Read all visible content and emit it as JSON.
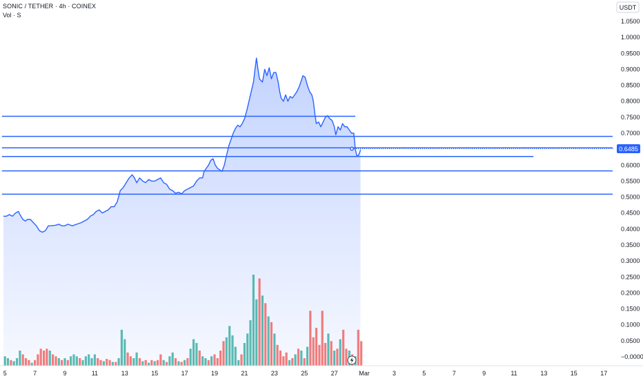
{
  "header": {
    "title": "SONIC / TETHER · 4h · COINEX",
    "volume_label": "Vol · S"
  },
  "price_axis": {
    "unit": "USDT",
    "last_price_label": "0.6485"
  },
  "colors": {
    "line": "#2962ff",
    "area_top": "#2962ff",
    "volume_up": "#26a69a",
    "volume_down": "#ef5350",
    "last_price": "#2962ff"
  },
  "chart_data": {
    "type": "area",
    "title": "SONIC / TETHER · 4h · COINEX",
    "ylabel": "USDT",
    "ylim": [
      -0.02,
      1.08
    ],
    "grid": false,
    "y_ticks": [
      {
        "value": 1.05,
        "label": "1.0500"
      },
      {
        "value": 1.0,
        "label": "1.0000"
      },
      {
        "value": 0.95,
        "label": "0.9500"
      },
      {
        "value": 0.9,
        "label": "0.9000"
      },
      {
        "value": 0.85,
        "label": "0.8500"
      },
      {
        "value": 0.8,
        "label": "0.8000"
      },
      {
        "value": 0.75,
        "label": "0.7500"
      },
      {
        "value": 0.7,
        "label": "0.7000"
      },
      {
        "value": 0.6,
        "label": "0.6000"
      },
      {
        "value": 0.55,
        "label": "0.5500"
      },
      {
        "value": 0.5,
        "label": "0.5000"
      },
      {
        "value": 0.45,
        "label": "0.4500"
      },
      {
        "value": 0.4,
        "label": "0.4000"
      },
      {
        "value": 0.35,
        "label": "0.3500"
      },
      {
        "value": 0.3,
        "label": "0.3000"
      },
      {
        "value": 0.25,
        "label": "0.2500"
      },
      {
        "value": 0.2,
        "label": "0.2000"
      },
      {
        "value": 0.15,
        "label": "0.1500"
      },
      {
        "value": 0.1,
        "label": "0.1000"
      },
      {
        "value": 0.05,
        "label": "0.0500"
      },
      {
        "value": 0.0,
        "label": "−0.0000"
      }
    ],
    "x_ticks": [
      {
        "day": 5,
        "label": "5"
      },
      {
        "day": 7,
        "label": "7"
      },
      {
        "day": 9,
        "label": "9"
      },
      {
        "day": 11,
        "label": "11"
      },
      {
        "day": 13,
        "label": "13"
      },
      {
        "day": 15,
        "label": "15"
      },
      {
        "day": 17,
        "label": "17"
      },
      {
        "day": 19,
        "label": "19"
      },
      {
        "day": 21,
        "label": "21"
      },
      {
        "day": 23,
        "label": "23"
      },
      {
        "day": 25,
        "label": "25"
      },
      {
        "day": 27,
        "label": "27"
      },
      {
        "day": 29,
        "label": "Mar"
      },
      {
        "day": 31,
        "label": "3"
      },
      {
        "day": 33,
        "label": "5"
      },
      {
        "day": 35,
        "label": "7"
      },
      {
        "day": 37,
        "label": "9"
      },
      {
        "day": 39,
        "label": "11"
      },
      {
        "day": 41,
        "label": "13"
      },
      {
        "day": 43,
        "label": "15"
      },
      {
        "day": 45,
        "label": "17"
      }
    ],
    "price_series": {
      "name": "SONIC / TETHER",
      "points": [
        [
          4.9,
          0.44
        ],
        [
          5.1,
          0.44
        ],
        [
          5.3,
          0.445
        ],
        [
          5.5,
          0.44
        ],
        [
          5.7,
          0.45
        ],
        [
          5.9,
          0.455
        ],
        [
          6.0,
          0.445
        ],
        [
          6.2,
          0.43
        ],
        [
          6.35,
          0.425
        ],
        [
          6.5,
          0.43
        ],
        [
          6.7,
          0.43
        ],
        [
          6.9,
          0.42
        ],
        [
          7.1,
          0.41
        ],
        [
          7.3,
          0.395
        ],
        [
          7.5,
          0.39
        ],
        [
          7.7,
          0.395
        ],
        [
          7.9,
          0.41
        ],
        [
          8.1,
          0.41
        ],
        [
          8.4,
          0.412
        ],
        [
          8.6,
          0.415
        ],
        [
          8.8,
          0.41
        ],
        [
          9.0,
          0.41
        ],
        [
          9.2,
          0.415
        ],
        [
          9.5,
          0.41
        ],
        [
          9.8,
          0.415
        ],
        [
          10.1,
          0.42
        ],
        [
          10.3,
          0.425
        ],
        [
          10.5,
          0.43
        ],
        [
          10.7,
          0.44
        ],
        [
          10.9,
          0.445
        ],
        [
          11.1,
          0.455
        ],
        [
          11.3,
          0.46
        ],
        [
          11.5,
          0.45
        ],
        [
          11.7,
          0.455
        ],
        [
          11.9,
          0.46
        ],
        [
          12.1,
          0.47
        ],
        [
          12.3,
          0.47
        ],
        [
          12.5,
          0.485
        ],
        [
          12.7,
          0.52
        ],
        [
          12.9,
          0.53
        ],
        [
          13.1,
          0.545
        ],
        [
          13.3,
          0.56
        ],
        [
          13.5,
          0.57
        ],
        [
          13.65,
          0.56
        ],
        [
          13.8,
          0.545
        ],
        [
          14.0,
          0.56
        ],
        [
          14.2,
          0.55
        ],
        [
          14.4,
          0.545
        ],
        [
          14.6,
          0.555
        ],
        [
          14.8,
          0.55
        ],
        [
          15.0,
          0.55
        ],
        [
          15.2,
          0.555
        ],
        [
          15.4,
          0.56
        ],
        [
          15.6,
          0.545
        ],
        [
          15.8,
          0.54
        ],
        [
          16.0,
          0.525
        ],
        [
          16.2,
          0.52
        ],
        [
          16.4,
          0.512
        ],
        [
          16.6,
          0.515
        ],
        [
          16.8,
          0.51
        ],
        [
          17.0,
          0.52
        ],
        [
          17.2,
          0.525
        ],
        [
          17.4,
          0.53
        ],
        [
          17.6,
          0.535
        ],
        [
          17.8,
          0.55
        ],
        [
          18.0,
          0.56
        ],
        [
          18.2,
          0.56
        ],
        [
          18.3,
          0.58
        ],
        [
          18.45,
          0.59
        ],
        [
          18.6,
          0.6
        ],
        [
          18.75,
          0.615
        ],
        [
          18.9,
          0.62
        ],
        [
          19.05,
          0.6
        ],
        [
          19.2,
          0.59
        ],
        [
          19.35,
          0.585
        ],
        [
          19.5,
          0.58
        ],
        [
          19.65,
          0.6
        ],
        [
          19.8,
          0.63
        ],
        [
          19.95,
          0.66
        ],
        [
          20.1,
          0.68
        ],
        [
          20.25,
          0.7
        ],
        [
          20.4,
          0.715
        ],
        [
          20.55,
          0.725
        ],
        [
          20.7,
          0.72
        ],
        [
          20.85,
          0.73
        ],
        [
          21.0,
          0.745
        ],
        [
          21.15,
          0.77
        ],
        [
          21.3,
          0.8
        ],
        [
          21.45,
          0.83
        ],
        [
          21.6,
          0.86
        ],
        [
          21.7,
          0.9
        ],
        [
          21.8,
          0.935
        ],
        [
          21.9,
          0.9
        ],
        [
          22.0,
          0.87
        ],
        [
          22.2,
          0.86
        ],
        [
          22.35,
          0.9
        ],
        [
          22.5,
          0.88
        ],
        [
          22.65,
          0.905
        ],
        [
          22.8,
          0.87
        ],
        [
          22.95,
          0.89
        ],
        [
          23.1,
          0.89
        ],
        [
          23.25,
          0.86
        ],
        [
          23.35,
          0.83
        ],
        [
          23.45,
          0.81
        ],
        [
          23.6,
          0.8
        ],
        [
          23.75,
          0.82
        ],
        [
          23.9,
          0.8
        ],
        [
          24.05,
          0.815
        ],
        [
          24.2,
          0.81
        ],
        [
          24.35,
          0.82
        ],
        [
          24.5,
          0.83
        ],
        [
          24.65,
          0.845
        ],
        [
          24.8,
          0.865
        ],
        [
          24.9,
          0.88
        ],
        [
          25.05,
          0.875
        ],
        [
          25.2,
          0.85
        ],
        [
          25.35,
          0.83
        ],
        [
          25.5,
          0.82
        ],
        [
          25.6,
          0.8
        ],
        [
          25.7,
          0.76
        ],
        [
          25.8,
          0.73
        ],
        [
          25.95,
          0.735
        ],
        [
          26.1,
          0.72
        ],
        [
          26.25,
          0.735
        ],
        [
          26.4,
          0.75
        ],
        [
          26.55,
          0.755
        ],
        [
          26.7,
          0.745
        ],
        [
          26.85,
          0.74
        ],
        [
          27.0,
          0.72
        ],
        [
          27.1,
          0.695
        ],
        [
          27.25,
          0.72
        ],
        [
          27.4,
          0.71
        ],
        [
          27.55,
          0.73
        ],
        [
          27.7,
          0.72
        ],
        [
          27.85,
          0.72
        ],
        [
          28.0,
          0.71
        ],
        [
          28.15,
          0.7
        ],
        [
          28.3,
          0.7
        ],
        [
          28.4,
          0.65
        ],
        [
          28.5,
          0.63
        ],
        [
          28.6,
          0.63
        ],
        [
          28.7,
          0.64
        ],
        [
          28.75,
          0.6485
        ]
      ]
    },
    "volume_series": {
      "name": "Vol",
      "bars": [
        [
          5.0,
          0.025,
          "up"
        ],
        [
          5.2,
          0.02,
          "up"
        ],
        [
          5.4,
          0.015,
          "down"
        ],
        [
          5.6,
          0.012,
          "up"
        ],
        [
          5.8,
          0.02,
          "up"
        ],
        [
          6.0,
          0.04,
          "up"
        ],
        [
          6.2,
          0.03,
          "down"
        ],
        [
          6.4,
          0.02,
          "down"
        ],
        [
          6.6,
          0.015,
          "down"
        ],
        [
          6.8,
          0.008,
          "up"
        ],
        [
          7.0,
          0.015,
          "down"
        ],
        [
          7.2,
          0.03,
          "down"
        ],
        [
          7.4,
          0.045,
          "down"
        ],
        [
          7.6,
          0.04,
          "down"
        ],
        [
          7.8,
          0.045,
          "down"
        ],
        [
          8.0,
          0.04,
          "up"
        ],
        [
          8.2,
          0.03,
          "down"
        ],
        [
          8.4,
          0.025,
          "down"
        ],
        [
          8.6,
          0.02,
          "up"
        ],
        [
          8.8,
          0.015,
          "down"
        ],
        [
          9.0,
          0.02,
          "up"
        ],
        [
          9.2,
          0.015,
          "down"
        ],
        [
          9.4,
          0.025,
          "up"
        ],
        [
          9.6,
          0.03,
          "up"
        ],
        [
          9.8,
          0.025,
          "up"
        ],
        [
          10.0,
          0.02,
          "down"
        ],
        [
          10.2,
          0.015,
          "up"
        ],
        [
          10.4,
          0.025,
          "up"
        ],
        [
          10.6,
          0.03,
          "up"
        ],
        [
          10.8,
          0.02,
          "up"
        ],
        [
          11.0,
          0.03,
          "up"
        ],
        [
          11.2,
          0.02,
          "down"
        ],
        [
          11.4,
          0.015,
          "down"
        ],
        [
          11.6,
          0.012,
          "up"
        ],
        [
          11.8,
          0.018,
          "down"
        ],
        [
          12.0,
          0.015,
          "down"
        ],
        [
          12.2,
          0.01,
          "up"
        ],
        [
          12.4,
          0.01,
          "down"
        ],
        [
          12.6,
          0.02,
          "up"
        ],
        [
          12.8,
          0.095,
          "up"
        ],
        [
          13.0,
          0.07,
          "up"
        ],
        [
          13.2,
          0.035,
          "down"
        ],
        [
          13.4,
          0.025,
          "down"
        ],
        [
          13.6,
          0.02,
          "up"
        ],
        [
          13.8,
          0.035,
          "up"
        ],
        [
          14.0,
          0.02,
          "down"
        ],
        [
          14.2,
          0.012,
          "up"
        ],
        [
          14.4,
          0.015,
          "down"
        ],
        [
          14.6,
          0.008,
          "up"
        ],
        [
          14.8,
          0.015,
          "down"
        ],
        [
          15.0,
          0.012,
          "up"
        ],
        [
          15.2,
          0.015,
          "down"
        ],
        [
          15.4,
          0.03,
          "down"
        ],
        [
          15.6,
          0.015,
          "up"
        ],
        [
          15.8,
          0.01,
          "down"
        ],
        [
          16.0,
          0.025,
          "up"
        ],
        [
          16.2,
          0.035,
          "up"
        ],
        [
          16.4,
          0.02,
          "down"
        ],
        [
          16.6,
          0.012,
          "up"
        ],
        [
          16.8,
          0.01,
          "down"
        ],
        [
          17.0,
          0.015,
          "up"
        ],
        [
          17.2,
          0.02,
          "down"
        ],
        [
          17.4,
          0.045,
          "up"
        ],
        [
          17.6,
          0.07,
          "up"
        ],
        [
          17.8,
          0.06,
          "up"
        ],
        [
          18.0,
          0.04,
          "down"
        ],
        [
          18.2,
          0.025,
          "up"
        ],
        [
          18.4,
          0.02,
          "up"
        ],
        [
          18.6,
          0.015,
          "down"
        ],
        [
          18.8,
          0.025,
          "up"
        ],
        [
          19.0,
          0.03,
          "down"
        ],
        [
          19.2,
          0.02,
          "down"
        ],
        [
          19.4,
          0.04,
          "down"
        ],
        [
          19.6,
          0.065,
          "down"
        ],
        [
          19.8,
          0.075,
          "up"
        ],
        [
          20.0,
          0.105,
          "up"
        ],
        [
          20.2,
          0.08,
          "up"
        ],
        [
          20.4,
          0.05,
          "up"
        ],
        [
          20.6,
          0.015,
          "up"
        ],
        [
          20.8,
          0.03,
          "down"
        ],
        [
          21.0,
          0.06,
          "up"
        ],
        [
          21.2,
          0.085,
          "up"
        ],
        [
          21.4,
          0.12,
          "up"
        ],
        [
          21.6,
          0.24,
          "up"
        ],
        [
          21.8,
          0.175,
          "up"
        ],
        [
          22.0,
          0.23,
          "down"
        ],
        [
          22.2,
          0.185,
          "up"
        ],
        [
          22.4,
          0.165,
          "down"
        ],
        [
          22.6,
          0.13,
          "up"
        ],
        [
          22.8,
          0.115,
          "down"
        ],
        [
          23.0,
          0.085,
          "up"
        ],
        [
          23.2,
          0.055,
          "down"
        ],
        [
          23.4,
          0.04,
          "down"
        ],
        [
          23.6,
          0.025,
          "down"
        ],
        [
          23.8,
          0.035,
          "down"
        ],
        [
          24.0,
          0.015,
          "up"
        ],
        [
          24.2,
          0.02,
          "down"
        ],
        [
          24.4,
          0.03,
          "up"
        ],
        [
          24.6,
          0.045,
          "down"
        ],
        [
          24.8,
          0.04,
          "up"
        ],
        [
          25.0,
          0.02,
          "down"
        ],
        [
          25.2,
          0.05,
          "up"
        ],
        [
          25.4,
          0.145,
          "down"
        ],
        [
          25.6,
          0.075,
          "down"
        ],
        [
          25.8,
          0.1,
          "down"
        ],
        [
          26.0,
          0.055,
          "down"
        ],
        [
          26.2,
          0.145,
          "down"
        ],
        [
          26.4,
          0.06,
          "down"
        ],
        [
          26.6,
          0.085,
          "up"
        ],
        [
          26.8,
          0.065,
          "down"
        ],
        [
          27.0,
          0.04,
          "up"
        ],
        [
          27.2,
          0.045,
          "down"
        ],
        [
          27.4,
          0.07,
          "up"
        ],
        [
          27.6,
          0.095,
          "down"
        ],
        [
          27.8,
          0.045,
          "down"
        ],
        [
          28.0,
          0.04,
          "up"
        ],
        [
          28.2,
          0.03,
          "down"
        ],
        [
          28.4,
          0.025,
          "up"
        ],
        [
          28.6,
          0.095,
          "down"
        ],
        [
          28.8,
          0.065,
          "down"
        ]
      ]
    },
    "horizontal_lines": [
      {
        "price": 0.753,
        "from_day": 4.8,
        "to_day": 28.4
      },
      {
        "price": 0.69,
        "from_day": 4.8,
        "to_day": 46.5
      },
      {
        "price": 0.654,
        "from_day": 4.8,
        "to_day": 46.0
      },
      {
        "price": 0.627,
        "from_day": 4.8,
        "to_day": 40.3
      },
      {
        "price": 0.582,
        "from_day": 4.8,
        "to_day": 46.0
      },
      {
        "price": 0.509,
        "from_day": 4.8,
        "to_day": 46.3
      }
    ],
    "last_price": 0.6485
  }
}
